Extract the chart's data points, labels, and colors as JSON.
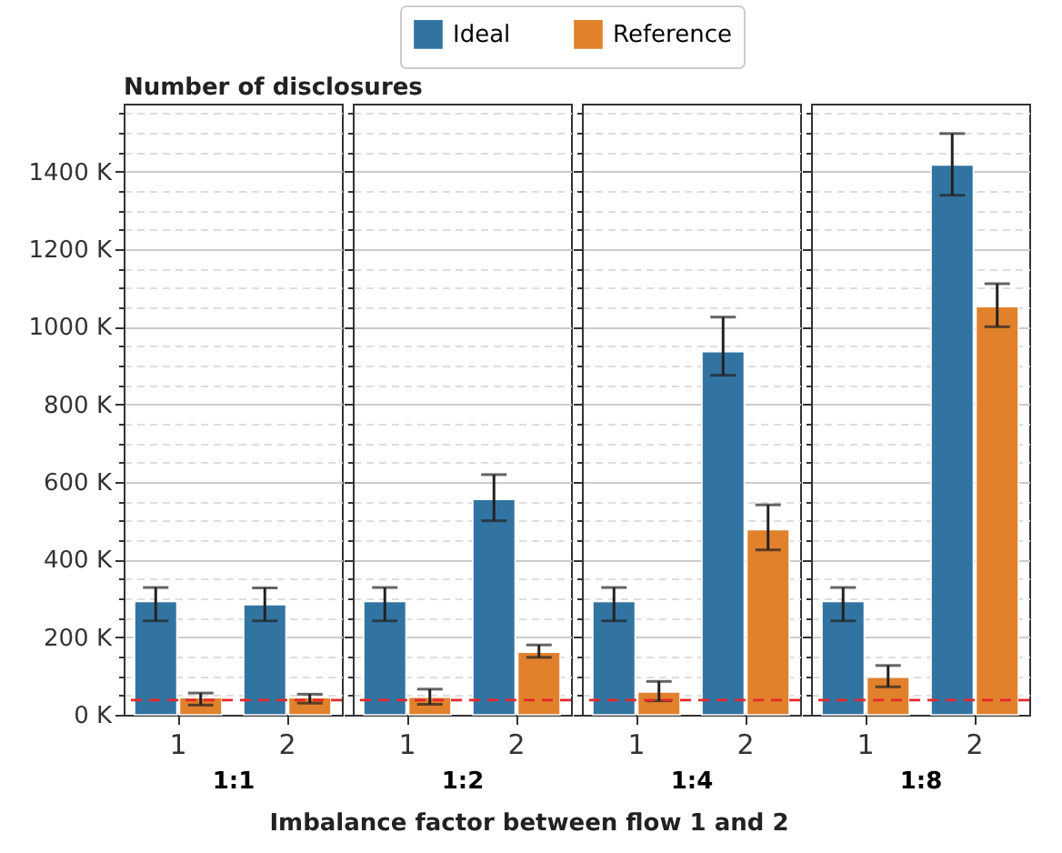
{
  "chart_data": [
    {
      "type": "bar",
      "ylabel": "Number of disclosures",
      "xlabel": "1:1",
      "annotations": [
        "Imbalance factor between flow 1 and 2"
      ],
      "categories": [
        "1",
        "2"
      ],
      "series": [
        {
          "name": "Ideal",
          "color": "#3274a1",
          "values": [
            292,
            284
          ],
          "errors": [
            [
              242,
              328
            ],
            [
              242,
              327
            ]
          ]
        },
        {
          "name": "Reference",
          "color": "#e1812c",
          "values": [
            44,
            44
          ],
          "errors": [
            [
              25,
              56
            ],
            [
              30,
              53
            ]
          ]
        }
      ],
      "ylim": [
        0,
        1575
      ],
      "yticks": [
        {
          "value": 0,
          "label": "0 K"
        },
        {
          "value": 50,
          "label": null
        },
        {
          "value": 100,
          "label": null
        },
        {
          "value": 150,
          "label": null
        },
        {
          "value": 200,
          "label": "200 K"
        },
        {
          "value": 250,
          "label": null
        },
        {
          "value": 300,
          "label": null
        },
        {
          "value": 350,
          "label": null
        },
        {
          "value": 400,
          "label": "400 K"
        },
        {
          "value": 450,
          "label": null
        },
        {
          "value": 500,
          "label": null
        },
        {
          "value": 550,
          "label": null
        },
        {
          "value": 600,
          "label": "600 K"
        },
        {
          "value": 650,
          "label": null
        },
        {
          "value": 700,
          "label": null
        },
        {
          "value": 750,
          "label": null
        },
        {
          "value": 800,
          "label": "800 K"
        },
        {
          "value": 850,
          "label": null
        },
        {
          "value": 900,
          "label": null
        },
        {
          "value": 950,
          "label": null
        },
        {
          "value": 1000,
          "label": "1000 K"
        },
        {
          "value": 1050,
          "label": null
        },
        {
          "value": 1100,
          "label": null
        },
        {
          "value": 1150,
          "label": null
        },
        {
          "value": 1200,
          "label": "1200 K"
        },
        {
          "value": 1250,
          "label": null
        },
        {
          "value": 1300,
          "label": null
        },
        {
          "value": 1350,
          "label": null
        },
        {
          "value": 1400,
          "label": "1400 K"
        },
        {
          "value": 1450,
          "label": null
        },
        {
          "value": 1500,
          "label": null
        },
        {
          "value": 1550,
          "label": null
        }
      ],
      "grid": "y",
      "legend": "top",
      "ref_lines": [
        {
          "axis": "y",
          "value": 38,
          "color": "#e8262a",
          "line_style": "dashed"
        }
      ]
    },
    {
      "type": "bar",
      "xlabel": "1:2",
      "categories": [
        "1",
        "2"
      ],
      "series": [
        {
          "name": "Ideal",
          "color": "#3274a1",
          "values": [
            292,
            555
          ],
          "errors": [
            [
              242,
              328
            ],
            [
              500,
              619
            ]
          ]
        },
        {
          "name": "Reference",
          "color": "#e1812c",
          "values": [
            45,
            161
          ],
          "errors": [
            [
              27,
              66
            ],
            [
              148,
              180
            ]
          ]
        }
      ],
      "ylim": [
        0,
        1575
      ],
      "yticks": [
        {
          "value": 0,
          "label": null
        },
        {
          "value": 50,
          "label": null
        },
        {
          "value": 100,
          "label": null
        },
        {
          "value": 150,
          "label": null
        },
        {
          "value": 200,
          "label": null
        },
        {
          "value": 250,
          "label": null
        },
        {
          "value": 300,
          "label": null
        },
        {
          "value": 350,
          "label": null
        },
        {
          "value": 400,
          "label": null
        },
        {
          "value": 450,
          "label": null
        },
        {
          "value": 500,
          "label": null
        },
        {
          "value": 550,
          "label": null
        },
        {
          "value": 600,
          "label": null
        },
        {
          "value": 650,
          "label": null
        },
        {
          "value": 700,
          "label": null
        },
        {
          "value": 750,
          "label": null
        },
        {
          "value": 800,
          "label": null
        },
        {
          "value": 850,
          "label": null
        },
        {
          "value": 900,
          "label": null
        },
        {
          "value": 950,
          "label": null
        },
        {
          "value": 1000,
          "label": null
        },
        {
          "value": 1050,
          "label": null
        },
        {
          "value": 1100,
          "label": null
        },
        {
          "value": 1150,
          "label": null
        },
        {
          "value": 1200,
          "label": null
        },
        {
          "value": 1250,
          "label": null
        },
        {
          "value": 1300,
          "label": null
        },
        {
          "value": 1350,
          "label": null
        },
        {
          "value": 1400,
          "label": null
        },
        {
          "value": 1450,
          "label": null
        },
        {
          "value": 1500,
          "label": null
        },
        {
          "value": 1550,
          "label": null
        }
      ],
      "tick_labels": "x",
      "grid": "y",
      "legend": "top",
      "ref_lines": [
        {
          "axis": "y",
          "value": 38,
          "color": "#e8262a",
          "line_style": "dashed"
        }
      ]
    },
    {
      "type": "bar",
      "xlabel": "1:4",
      "categories": [
        "1",
        "2"
      ],
      "series": [
        {
          "name": "Ideal",
          "color": "#3274a1",
          "values": [
            292,
            936
          ],
          "errors": [
            [
              242,
              328
            ],
            [
              875,
              1025
            ]
          ]
        },
        {
          "name": "Reference",
          "color": "#e1812c",
          "values": [
            59,
            477
          ],
          "errors": [
            [
              36,
              86
            ],
            [
              425,
              541
            ]
          ]
        }
      ],
      "ylim": [
        0,
        1575
      ],
      "yticks": [
        {
          "value": 0,
          "label": null
        },
        {
          "value": 50,
          "label": null
        },
        {
          "value": 100,
          "label": null
        },
        {
          "value": 150,
          "label": null
        },
        {
          "value": 200,
          "label": null
        },
        {
          "value": 250,
          "label": null
        },
        {
          "value": 300,
          "label": null
        },
        {
          "value": 350,
          "label": null
        },
        {
          "value": 400,
          "label": null
        },
        {
          "value": 450,
          "label": null
        },
        {
          "value": 500,
          "label": null
        },
        {
          "value": 550,
          "label": null
        },
        {
          "value": 600,
          "label": null
        },
        {
          "value": 650,
          "label": null
        },
        {
          "value": 700,
          "label": null
        },
        {
          "value": 750,
          "label": null
        },
        {
          "value": 800,
          "label": null
        },
        {
          "value": 850,
          "label": null
        },
        {
          "value": 900,
          "label": null
        },
        {
          "value": 950,
          "label": null
        },
        {
          "value": 1000,
          "label": null
        },
        {
          "value": 1050,
          "label": null
        },
        {
          "value": 1100,
          "label": null
        },
        {
          "value": 1150,
          "label": null
        },
        {
          "value": 1200,
          "label": null
        },
        {
          "value": 1250,
          "label": null
        },
        {
          "value": 1300,
          "label": null
        },
        {
          "value": 1350,
          "label": null
        },
        {
          "value": 1400,
          "label": null
        },
        {
          "value": 1450,
          "label": null
        },
        {
          "value": 1500,
          "label": null
        },
        {
          "value": 1550,
          "label": null
        }
      ],
      "tick_labels": "x",
      "grid": "y",
      "legend": "top",
      "ref_lines": [
        {
          "axis": "y",
          "value": 38,
          "color": "#e8262a",
          "line_style": "dashed"
        }
      ]
    },
    {
      "type": "bar",
      "xlabel": "1:8",
      "categories": [
        "1",
        "2"
      ],
      "series": [
        {
          "name": "Ideal",
          "color": "#3274a1",
          "values": [
            292,
            1417
          ],
          "errors": [
            [
              242,
              328
            ],
            [
              1339,
              1498
            ]
          ]
        },
        {
          "name": "Reference",
          "color": "#e1812c",
          "values": [
            97,
            1052
          ],
          "errors": [
            [
              72,
              127
            ],
            [
              1000,
              1111
            ]
          ]
        }
      ],
      "ylim": [
        0,
        1575
      ],
      "yticks": [
        {
          "value": 0,
          "label": null
        },
        {
          "value": 50,
          "label": null
        },
        {
          "value": 100,
          "label": null
        },
        {
          "value": 150,
          "label": null
        },
        {
          "value": 200,
          "label": null
        },
        {
          "value": 250,
          "label": null
        },
        {
          "value": 300,
          "label": null
        },
        {
          "value": 350,
          "label": null
        },
        {
          "value": 400,
          "label": null
        },
        {
          "value": 450,
          "label": null
        },
        {
          "value": 500,
          "label": null
        },
        {
          "value": 550,
          "label": null
        },
        {
          "value": 600,
          "label": null
        },
        {
          "value": 650,
          "label": null
        },
        {
          "value": 700,
          "label": null
        },
        {
          "value": 750,
          "label": null
        },
        {
          "value": 800,
          "label": null
        },
        {
          "value": 850,
          "label": null
        },
        {
          "value": 900,
          "label": null
        },
        {
          "value": 950,
          "label": null
        },
        {
          "value": 1000,
          "label": null
        },
        {
          "value": 1050,
          "label": null
        },
        {
          "value": 1100,
          "label": null
        },
        {
          "value": 1150,
          "label": null
        },
        {
          "value": 1200,
          "label": null
        },
        {
          "value": 1250,
          "label": null
        },
        {
          "value": 1300,
          "label": null
        },
        {
          "value": 1350,
          "label": null
        },
        {
          "value": 1400,
          "label": null
        },
        {
          "value": 1450,
          "label": null
        },
        {
          "value": 1500,
          "label": null
        },
        {
          "value": 1550,
          "label": null
        }
      ],
      "tick_labels": "x",
      "grid": "y",
      "legend": "top",
      "ref_lines": [
        {
          "axis": "y",
          "value": 38,
          "color": "#e8262a",
          "line_style": "dashed"
        }
      ]
    }
  ]
}
